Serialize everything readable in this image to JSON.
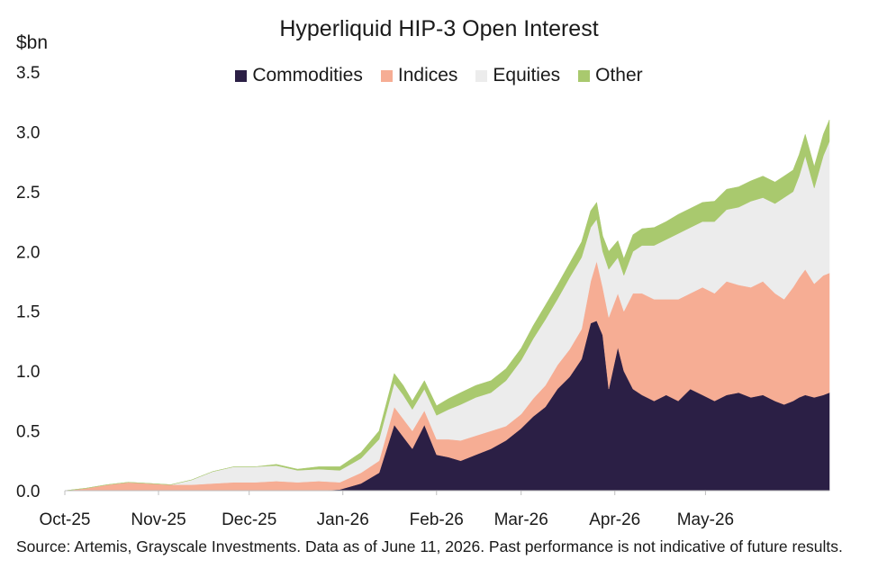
{
  "chart_data": {
    "type": "area",
    "stacked": true,
    "title": "Hyperliquid HIP-3 Open Interest",
    "ylabel": "$bn",
    "ylim": [
      0,
      3.5
    ],
    "yticks": [
      "0.0",
      "0.5",
      "1.0",
      "1.5",
      "2.0",
      "2.5",
      "3.0",
      "3.5"
    ],
    "xticks": [
      "Oct-25",
      "Nov-25",
      "Dec-25",
      "Jan-26",
      "Feb-26",
      "Mar-26",
      "Apr-26",
      "May-26"
    ],
    "x": [
      "2025-10-01",
      "2025-10-08",
      "2025-10-15",
      "2025-10-22",
      "2025-10-29",
      "2025-11-05",
      "2025-11-12",
      "2025-11-19",
      "2025-11-26",
      "2025-12-03",
      "2025-12-10",
      "2025-12-17",
      "2025-12-24",
      "2025-12-31",
      "2026-01-07",
      "2026-01-13",
      "2026-01-18",
      "2026-01-21",
      "2026-01-24",
      "2026-01-28",
      "2026-02-01",
      "2026-02-05",
      "2026-02-09",
      "2026-02-14",
      "2026-02-19",
      "2026-02-24",
      "2026-03-01",
      "2026-03-05",
      "2026-03-09",
      "2026-03-13",
      "2026-03-17",
      "2026-03-21",
      "2026-03-24",
      "2026-03-26",
      "2026-03-28",
      "2026-03-30",
      "2026-04-02",
      "2026-04-04",
      "2026-04-07",
      "2026-04-10",
      "2026-04-14",
      "2026-04-18",
      "2026-04-22",
      "2026-04-26",
      "2026-04-30",
      "2026-05-04",
      "2026-05-08",
      "2026-05-12",
      "2026-05-16",
      "2026-05-20",
      "2026-05-24",
      "2026-05-27",
      "2026-05-30",
      "2026-06-01",
      "2026-06-03",
      "2026-06-06",
      "2026-06-09",
      "2026-06-11"
    ],
    "series": [
      {
        "name": "Commodities",
        "color": "#2b1f45",
        "values": [
          0,
          0,
          0,
          0,
          0,
          0,
          0,
          0,
          0,
          0,
          0,
          0,
          0,
          0.01,
          0.06,
          0.15,
          0.55,
          0.45,
          0.35,
          0.55,
          0.3,
          0.28,
          0.25,
          0.3,
          0.35,
          0.42,
          0.52,
          0.62,
          0.7,
          0.85,
          0.95,
          1.1,
          1.4,
          1.42,
          1.3,
          0.85,
          1.2,
          1.0,
          0.85,
          0.8,
          0.75,
          0.8,
          0.75,
          0.85,
          0.8,
          0.75,
          0.8,
          0.82,
          0.78,
          0.8,
          0.75,
          0.72,
          0.75,
          0.78,
          0.8,
          0.78,
          0.8,
          0.82
        ]
      },
      {
        "name": "Indices",
        "color": "#f6ad94",
        "values": [
          0,
          0.02,
          0.05,
          0.07,
          0.06,
          0.05,
          0.05,
          0.06,
          0.07,
          0.07,
          0.08,
          0.07,
          0.08,
          0.06,
          0.09,
          0.1,
          0.15,
          0.15,
          0.15,
          0.12,
          0.13,
          0.15,
          0.17,
          0.16,
          0.15,
          0.12,
          0.12,
          0.15,
          0.18,
          0.2,
          0.23,
          0.25,
          0.35,
          0.5,
          0.4,
          0.6,
          0.45,
          0.5,
          0.8,
          0.85,
          0.85,
          0.8,
          0.85,
          0.8,
          0.9,
          0.9,
          0.95,
          0.9,
          0.92,
          0.95,
          0.9,
          0.88,
          0.95,
          1.0,
          1.05,
          0.95,
          1.0,
          1.0
        ]
      },
      {
        "name": "Equities",
        "color": "#ececec",
        "values": [
          0,
          0,
          0,
          0,
          0,
          0,
          0.04,
          0.1,
          0.13,
          0.13,
          0.13,
          0.1,
          0.1,
          0.1,
          0.12,
          0.18,
          0.2,
          0.2,
          0.18,
          0.18,
          0.2,
          0.25,
          0.3,
          0.32,
          0.32,
          0.38,
          0.45,
          0.5,
          0.55,
          0.55,
          0.6,
          0.6,
          0.45,
          0.35,
          0.3,
          0.4,
          0.3,
          0.3,
          0.35,
          0.4,
          0.45,
          0.5,
          0.55,
          0.55,
          0.55,
          0.6,
          0.6,
          0.65,
          0.72,
          0.7,
          0.75,
          0.85,
          0.8,
          0.85,
          0.95,
          0.8,
          1.0,
          1.1
        ]
      },
      {
        "name": "Other",
        "color": "#a9c96e",
        "values": [
          0,
          0,
          0,
          0,
          0,
          0,
          0,
          0,
          0,
          0,
          0.01,
          0.01,
          0.02,
          0.03,
          0.05,
          0.07,
          0.08,
          0.08,
          0.07,
          0.07,
          0.08,
          0.09,
          0.1,
          0.1,
          0.1,
          0.1,
          0.1,
          0.11,
          0.12,
          0.12,
          0.12,
          0.13,
          0.14,
          0.14,
          0.13,
          0.15,
          0.14,
          0.14,
          0.14,
          0.14,
          0.15,
          0.15,
          0.16,
          0.16,
          0.16,
          0.17,
          0.17,
          0.17,
          0.17,
          0.18,
          0.18,
          0.18,
          0.18,
          0.18,
          0.18,
          0.18,
          0.18,
          0.18
        ]
      }
    ],
    "legend_position": "top-center",
    "grid": false
  },
  "footer": {
    "source": "Source: Artemis, Grayscale Investments. Data as of June 11, 2026. Past performance is not indicative of future results."
  }
}
